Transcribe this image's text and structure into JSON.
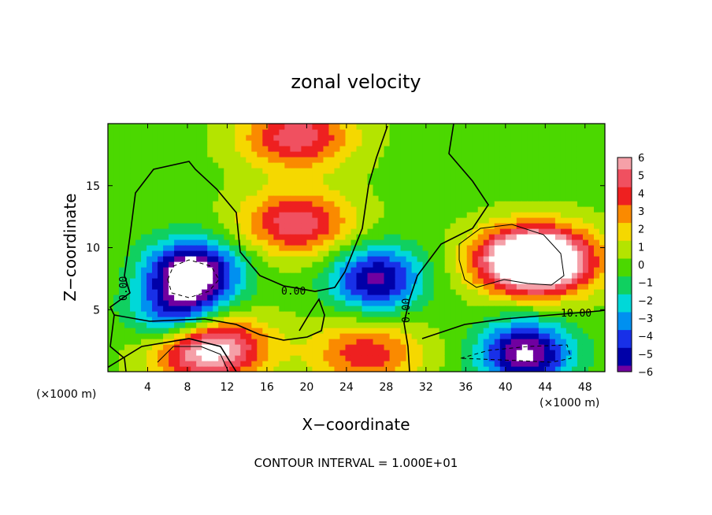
{
  "chart_data": {
    "type": "heatmap",
    "title": "zonal velocity",
    "xlabel": "X−coordinate",
    "ylabel": "Z−coordinate",
    "x_units": "(×1000 m)",
    "z_units": "(×1000 m)",
    "xlim": [
      0,
      50
    ],
    "ylim": [
      0,
      20
    ],
    "x_ticks": [
      4,
      8,
      12,
      16,
      20,
      24,
      28,
      32,
      36,
      40,
      44,
      48
    ],
    "y_ticks": [
      5,
      10,
      15
    ],
    "colorbar": {
      "levels": [
        6,
        5,
        4,
        3,
        2,
        1,
        0,
        -1,
        -2,
        -3,
        -4,
        -5,
        -6
      ],
      "labels": [
        "6",
        "5",
        "4",
        "3",
        "2",
        "1",
        "0",
        "−1",
        "−2",
        "−3",
        "−4",
        "−5",
        "−6"
      ]
    },
    "contour_labels": [
      "0.00",
      "0.00",
      "0.00",
      "0.00",
      "10.00"
    ],
    "footer": "CONTOUR INTERVAL = 1.000E+01",
    "features": [
      {
        "kind": "positive",
        "x": 19,
        "z": 12,
        "value": 5
      },
      {
        "kind": "positive",
        "x": 19,
        "z": 19,
        "value": 5
      },
      {
        "kind": "positive",
        "x": 43,
        "z": 9,
        "value": 12
      },
      {
        "kind": "positive",
        "x": 10,
        "z": 2,
        "value": 8
      },
      {
        "kind": "positive",
        "x": 26,
        "z": 1.5,
        "value": 4
      },
      {
        "kind": "negative",
        "x": 8.5,
        "z": 8,
        "value": -8
      },
      {
        "kind": "negative",
        "x": 7,
        "z": 4.4,
        "value": -5
      },
      {
        "kind": "negative",
        "x": 27,
        "z": 7.5,
        "value": -6
      },
      {
        "kind": "negative",
        "x": 42,
        "z": 1.5,
        "value": -7
      }
    ]
  }
}
